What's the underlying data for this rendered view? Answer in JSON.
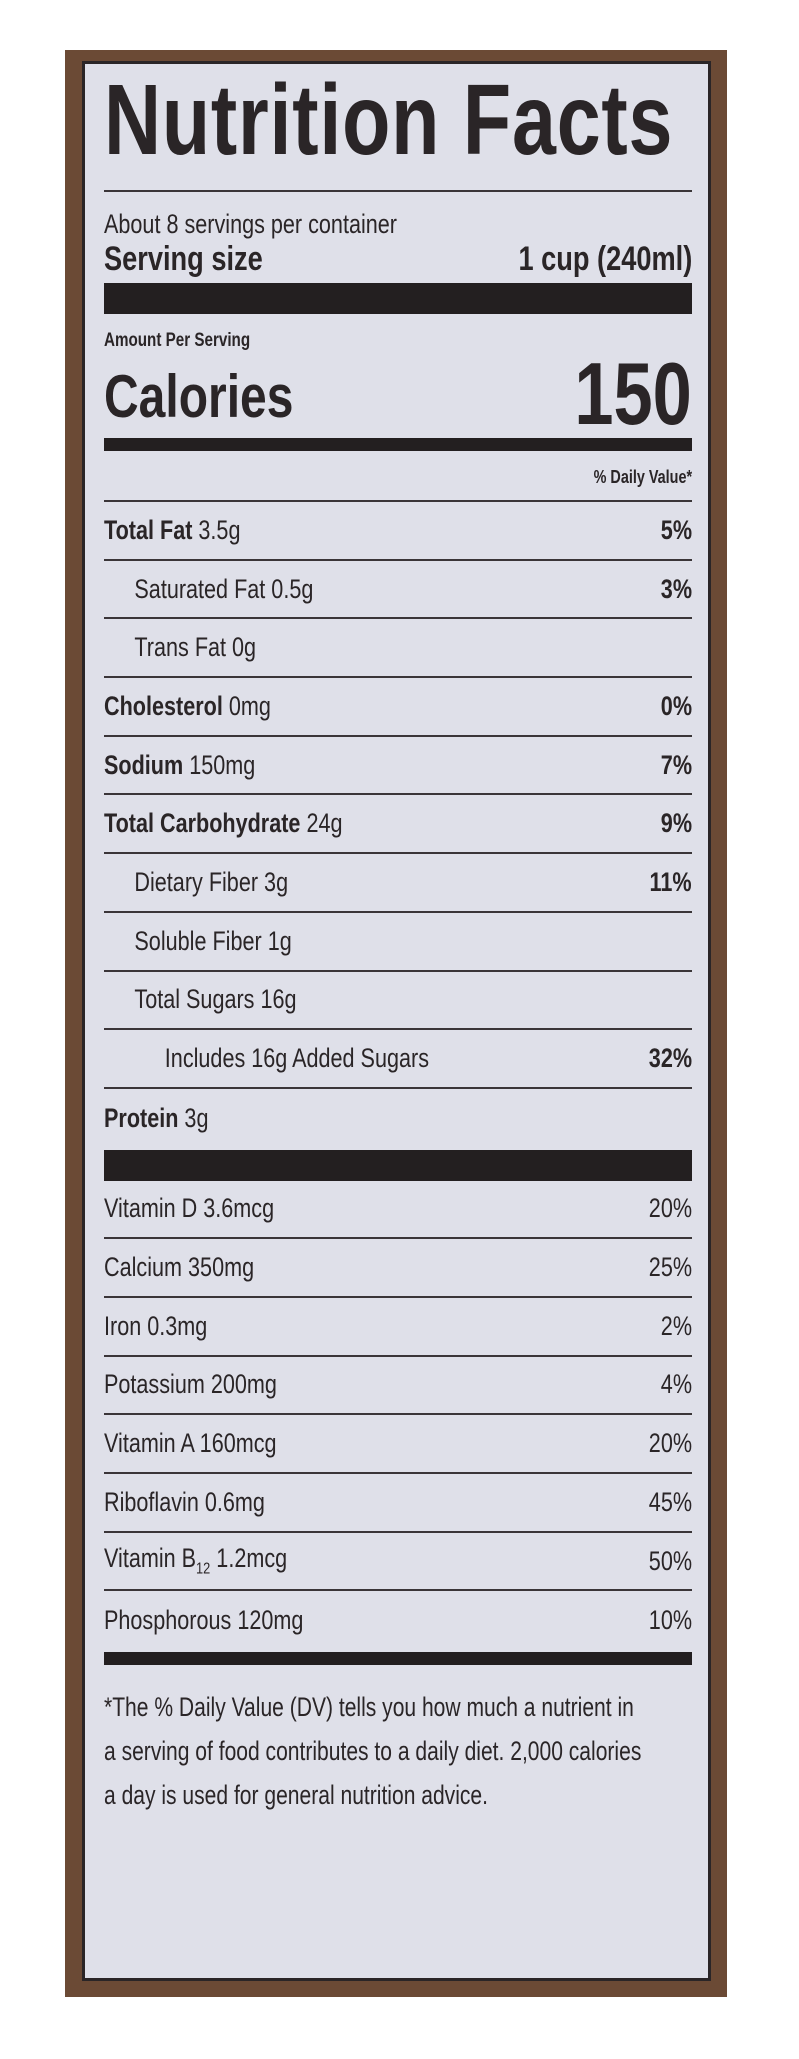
{
  "label": {
    "title": "Nutrition Facts",
    "servings_per_container": "About 8 servings per container",
    "serving_size_label": "Serving size",
    "serving_size_value": "1 cup (240ml)",
    "amount_per_serving": "Amount Per Serving",
    "calories_label": "Calories",
    "calories_value": "150",
    "daily_value_header": "% Daily Value*",
    "nutrients": [
      {
        "name": "Total Fat",
        "amount": "3.5g",
        "dv": "5%",
        "bold": true,
        "indent": 0
      },
      {
        "name": "Saturated Fat",
        "amount": "0.5g",
        "dv": "3%",
        "bold": false,
        "indent": 1
      },
      {
        "name": "Trans Fat",
        "amount": "0g",
        "dv": "",
        "bold": false,
        "indent": 1
      },
      {
        "name": "Cholesterol",
        "amount": "0mg",
        "dv": "0%",
        "bold": true,
        "indent": 0
      },
      {
        "name": "Sodium",
        "amount": "150mg",
        "dv": "7%",
        "bold": true,
        "indent": 0
      },
      {
        "name": "Total Carbohydrate",
        "amount": "24g",
        "dv": "9%",
        "bold": true,
        "indent": 0
      },
      {
        "name": "Dietary Fiber",
        "amount": "3g",
        "dv": "11%",
        "bold": false,
        "indent": 1
      },
      {
        "name": "Soluble Fiber",
        "amount": "1g",
        "dv": "",
        "bold": false,
        "indent": 1
      },
      {
        "name": "Total Sugars",
        "amount": "16g",
        "dv": "",
        "bold": false,
        "indent": 1
      },
      {
        "name": "Includes 16g Added Sugars",
        "amount": "",
        "dv": "32%",
        "bold": false,
        "indent": 2
      },
      {
        "name": "Protein",
        "amount": "3g",
        "dv": "",
        "bold": true,
        "indent": 0
      }
    ],
    "vitamins": [
      {
        "name": "Vitamin D",
        "sub": "",
        "amount": "3.6mcg",
        "dv": "20%"
      },
      {
        "name": "Calcium",
        "sub": "",
        "amount": "350mg",
        "dv": "25%"
      },
      {
        "name": "Iron",
        "sub": "",
        "amount": "0.3mg",
        "dv": "2%"
      },
      {
        "name": "Potassium",
        "sub": "",
        "amount": "200mg",
        "dv": "4%"
      },
      {
        "name": "Vitamin A",
        "sub": "",
        "amount": "160mcg",
        "dv": "20%"
      },
      {
        "name": "Riboflavin",
        "sub": "",
        "amount": "0.6mg",
        "dv": "45%"
      },
      {
        "name": "Vitamin B",
        "sub": "12",
        "amount": "1.2mcg",
        "dv": "50%"
      },
      {
        "name": "Phosphorous",
        "sub": "",
        "amount": "120mg",
        "dv": "10%"
      }
    ],
    "footnote_lines": [
      "*The % Daily Value (DV) tells you how much a nutrient in",
      "a serving of food contributes to a daily diet. 2,000 calories",
      "a day is used for general nutrition advice."
    ]
  },
  "colors": {
    "border_brown": "#6b4a35",
    "background": "#dfe0e9",
    "ink": "#231f20"
  }
}
